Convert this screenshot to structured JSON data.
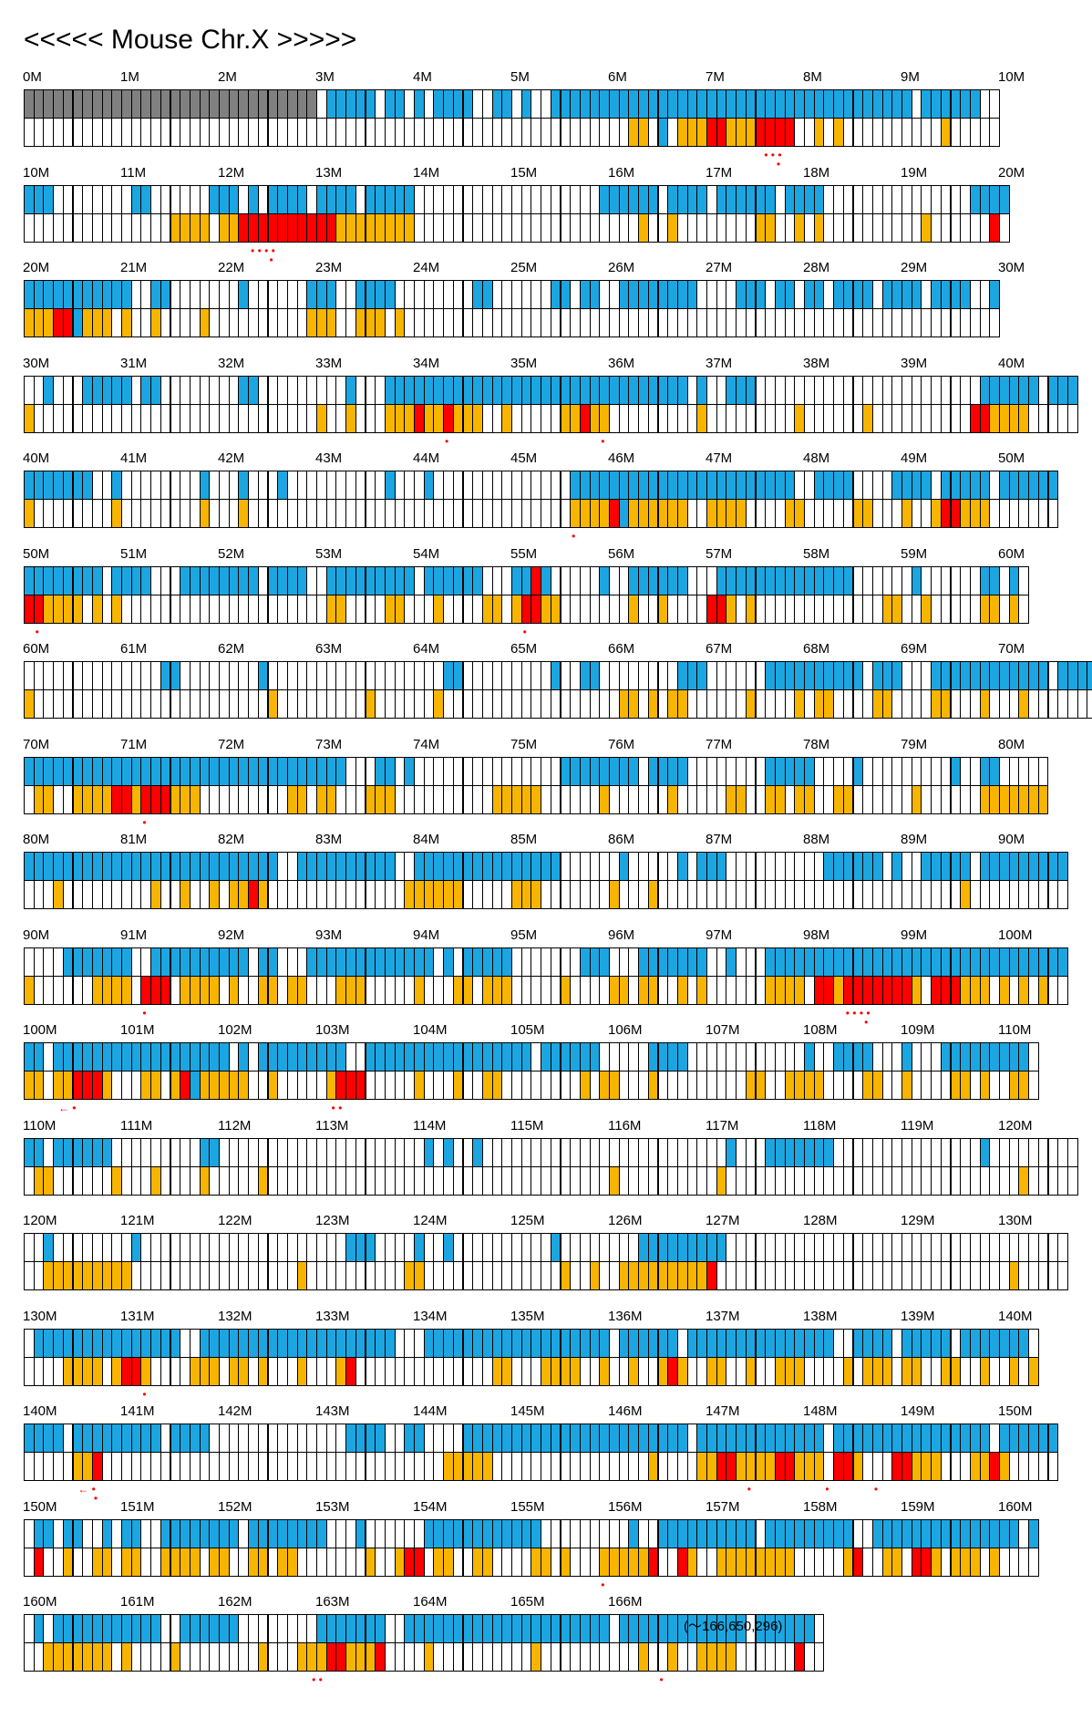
{
  "title": "<<<<< Mouse Chr.X >>>>>",
  "end_note": "(〜166,650,296)",
  "legend_colors": {
    "gray": "#808080",
    "blue": "#1ba6e1",
    "orange": "#f7b500",
    "red": "#ff0000",
    "marker": "#ff0000"
  },
  "bins_per_megabase": 10,
  "rows": [
    {
      "start_label": "0M",
      "tick_labels": [
        "0M",
        "1M",
        "2M",
        "3M",
        "4M",
        "5M",
        "6M",
        "7M",
        "8M",
        "9M",
        "10M"
      ],
      "top": "GGGGGGGGGGGGGGGGGGGGGGGGGGGGGG.BBBBB.BB.B.BBBB..BB.B..BBBBBBBBBBBBBBBBBBBBBBBBBBBBBBBBBBBBB.BBBBBB.",
      "bottom": "..............................................................OO.B.OOORROOORRRR..O.O..........O..",
      "markers": [
        {
          "bin": 77,
          "text": "• • •"
        },
        {
          "bin": 77,
          "text": "•",
          "level": 2
        }
      ]
    },
    {
      "start_label": "10M",
      "tick_labels": [
        "10M",
        "11M",
        "12M",
        "13M",
        "14M",
        "15M",
        "16M",
        "17M",
        "18M",
        "19M",
        "20M"
      ],
      "top": "BBB........BB......BBB.B.BBBB.BBBB.BBBBB...................BBBBBB.BBBB.BBBBBB.BBBB...............BBBB",
      "bottom": "...............OOOO.OORRRRRRRRRROOOOOOOO.......................O..O........OO..O.O..........O......R",
      "markers": [
        {
          "bin": 25,
          "text": "• • • •"
        },
        {
          "bin": 25,
          "text": "•",
          "level": 2
        }
      ]
    },
    {
      "start_label": "20M",
      "tick_labels": [
        "20M",
        "21M",
        "22M",
        "23M",
        "24M",
        "25M",
        "26M",
        "27M",
        "28M",
        "29M",
        "30M"
      ],
      "top": "BBBBBBBBBBB..BB.......B......BBB..BBBB........BB......BB.BB..BBBBBBBB....BBB.BB.BB.BBBB.BBBB.BBBB..B",
      "bottom": "OOORRBOOO.O..O....O..........OOO..OOO.O..........................................................",
      "markers": []
    },
    {
      "start_label": "30M",
      "tick_labels": [
        "30M",
        "31M",
        "32M",
        "33M",
        "34M",
        "35M",
        "36M",
        "37M",
        "38M",
        "39M",
        "40M"
      ],
      "top": "..B...BBBBB.BB........BB.........B...BBBBBBBBBBBBBBBBBBBBBBBBBBBBBBB.B..BBB.......................BBBBBB.BBB",
      "bottom": "O.............................O..O...OOOROOROOO..O.....OOROO.........O.........O......O..........RROOOO",
      "markers": [
        {
          "bin": 43,
          "text": "•"
        },
        {
          "bin": 59,
          "text": "•"
        }
      ]
    },
    {
      "start_label": "40M",
      "tick_labels": [
        "40M",
        "41M",
        "42M",
        "43M",
        "44M",
        "45M",
        "46M",
        "47M",
        "48M",
        "49M",
        "50M"
      ],
      "top": "BBBBBBB..B........B...B...B..........B...B..............BBBBBBBBBBBBBBBBBBBBBBB..BBBB....BBBB.BBBBB.BBBBBB",
      "bottom": "O........O........O...O.................................OOOORBOOOOOO..OOOO....OO.....OO...O..ORROOO",
      "markers": [
        {
          "bin": 56,
          "text": "•"
        }
      ]
    },
    {
      "start_label": "50M",
      "tick_labels": [
        "50M",
        "51M",
        "52M",
        "53M",
        "54M",
        "55M",
        "56M",
        "57M",
        "58M",
        "59M",
        "60M"
      ],
      "top": "BBBBBBBB.BBBB...BBBBBBBB.BBBB..BBBBBBBBB.BBBBBB...BBRB.....B..BBBBBB...BBBBBBBBBBBBBB......B......BB.B.",
      "bottom": "RROOOO.O.O.....................OO....OO...O....OO.ORROO.......O..O....RRO.O.............OO..O.....OO.O.",
      "markers": [
        {
          "bin": 1,
          "text": "•"
        },
        {
          "bin": 51,
          "text": "•"
        }
      ]
    },
    {
      "start_label": "60M",
      "tick_labels": [
        "60M",
        "61M",
        "62M",
        "63M",
        "64M",
        "65M",
        "66M",
        "67M",
        "68M",
        "69M",
        "70M"
      ],
      "top": "..............BB........B..................BB.........B..BB........BBB......BBBBBBBBBB.BBB...BBBBBBBBBBBB.BBBBBB",
      "bottom": "O........................O.........O......O..................OO.O.OO......O....O.OO....OO....OO...O...O.......",
      "markers": []
    },
    {
      "start_label": "70M",
      "tick_labels": [
        "70M",
        "71M",
        "72M",
        "73M",
        "74M",
        "75M",
        "76M",
        "77M",
        "78M",
        "79M",
        "80M"
      ],
      "top": "BBBBBBBBBBBBBBBBBBBBBBBBBBBBBBBBB...BB.B...............BBBBBBBB.BBBB........BBBBB....B.........B..BB...",
      "bottom": ".OO..OOOORRORRROOO.........OO.OO...OOO..........OOOOO......O......O.....OO..OO.OO..OO......O......OOOOOOO",
      "markers": [
        {
          "bin": 12,
          "text": "•"
        }
      ]
    },
    {
      "start_label": "80M",
      "tick_labels": [
        "80M",
        "81M",
        "82M",
        "83M",
        "84M",
        "85M",
        "86M",
        "87M",
        "88M",
        "89M",
        "90M"
      ],
      "top": "BBBBBBBBBBBBBBBBBBBBBBBBBB..BBBBBBBBBB..BBBBBBBBBBBBBBB......B.....B.BBB..........BBBBBB.B..BBBBB.BBBBBBBBB",
      "bottom": "...O.........O..O..O.OORO..............OOOOOO.....OOO.......O...O...............................O.........",
      "markers": []
    },
    {
      "start_label": "90M",
      "tick_labels": [
        "90M",
        "91M",
        "92M",
        "93M",
        "94M",
        "95M",
        "96M",
        "97M",
        "98M",
        "99M",
        "100M"
      ],
      "top": "....BBBBBBB..BBBBBBBBBB.BB...BBBBBBBBBBBBB.B.BBBBB.......BBB...BBBBBBB..B...BBBBBBBBBBBBBBBBBBBBBBBBBBBBBBB",
      "bottom": "O......OOOO.RRR.OOOO.O..OO.OO...OOO.....O...OO.OOO.....O....OO.OO..O.O......OOOO.RRORRRRRRRO.RRROOO.O.O.O",
      "markers": [
        {
          "bin": 12,
          "text": "•"
        },
        {
          "bin": 86,
          "text": "• • • •"
        },
        {
          "bin": 86,
          "text": "•",
          "level": 2
        }
      ]
    },
    {
      "start_label": "100M",
      "tick_labels": [
        "100M",
        "101M",
        "102M",
        "103M",
        "104M",
        "105M",
        "106M",
        "107M",
        "108M",
        "109M",
        "110M"
      ],
      "top": "BB.BBBBBBBBBBBBBBBBBB.B.BBBBBBBBB..BBBBBBBBBBBBBBBBB.BBBBBB.....BBBB............B..BBBB...B...BBBBBBBBB",
      "bottom": "OO.OORRRO...OO.ORBOOOOO..O.....ORRR.....O...O..OO........O.OO...O.........OO..OOOO....OO..O....OO.O..OO.",
      "markers": [
        {
          "bin": 4,
          "text": "← •"
        },
        {
          "bin": 32,
          "text": "• •"
        }
      ]
    },
    {
      "start_label": "110M",
      "tick_labels": [
        "110M",
        "111M",
        "112M",
        "113M",
        "114M",
        "115M",
        "116M",
        "117M",
        "118M",
        "119M",
        "120M"
      ],
      "top": "BB.BBBBBB.........BB.....................B.B..B.........................B...BBBBBBB...............B....",
      "bottom": ".OO......O...O....O.....O...................................O..........O..............................O.....",
      "markers": []
    },
    {
      "start_label": "120M",
      "tick_labels": [
        "120M",
        "121M",
        "122M",
        "123M",
        "124M",
        "125M",
        "126M",
        "127M",
        "128M",
        "129M",
        "130M"
      ],
      "top": "..B........B.....................BBB....B..B..........B........BBBBBBBBB...................................",
      "bottom": "..OOOOOOOOO.................O..........OO..............O..O..OOOOOOOOOR..............................O.",
      "markers": []
    },
    {
      "start_label": "130M",
      "tick_labels": [
        "130M",
        "131M",
        "132M",
        "133M",
        "134M",
        "135M",
        "136M",
        "137M",
        "138M",
        "139M",
        "140M"
      ],
      "top": ".BBBBBBBBBBBBBBB..BBBBBBBBBBBBBBBBBBBB...BBBBBBBBBBBBBBBBBBB.BBBBBB.BBBBBBBBBBBBBBB..BBBB.BBBBB.BBBBBBB",
      "bottom": "....OOOO.ORRO....OOO.OO.O...O...OR..............OO...OOOO..O..O..ORO..OO..O..OOO....O.OOO.OO..OO..O..O.O",
      "markers": [
        {
          "bin": 12,
          "text": "•"
        }
      ]
    },
    {
      "start_label": "140M",
      "tick_labels": [
        "140M",
        "141M",
        "142M",
        "143M",
        "144M",
        "145M",
        "146M",
        "147M",
        "148M",
        "149M",
        "150M"
      ],
      "top": "BBBB.BBBBBBBBB.BBBB..............BBBB..BB....BBBBBBBBBBBBBBBBBBBBBBB.BBBBBBBBBBBBB.BBBBBBBBBBBBBBBB.BBBBBB",
      "bottom": ".....OOR...................................OOOOO................O....OORROOOORROOO.RRO...RROOO...OORO.",
      "markers": [
        {
          "bin": 6,
          "text": "← •"
        },
        {
          "bin": 7,
          "text": "•",
          "level": 2
        },
        {
          "bin": 74,
          "text": "•"
        },
        {
          "bin": 82,
          "text": "•"
        },
        {
          "bin": 87,
          "text": "•"
        }
      ]
    },
    {
      "start_label": "150M",
      "tick_labels": [
        "150M",
        "151M",
        "152M",
        "153M",
        "154M",
        "155M",
        "156M",
        "157M",
        "158M",
        "159M",
        "160M"
      ],
      "top": ".BB.BB..B.BB..BBBBBBBB.BBBBBBBB...B......BBBBBBBBBBBB.........B..BBBBBBBBBB.BBBBBBBBB..BBBBBBBBBBBBBBB.B",
      "bottom": ".R..O..OO.OO..OOOO.OO..OO.OO.......O..ORR.OO..OO....OO.O...OOOOOR..RO..OOOOOOOO.....OR..OO.RRO.OOO.O",
      "markers": [
        {
          "bin": 59,
          "text": "•"
        }
      ]
    },
    {
      "start_label": "160M",
      "tick_labels": [
        "160M",
        "161M",
        "162M",
        "163M",
        "164M",
        "165M",
        "166M"
      ],
      "top": ".B.BBBBBBBBBBB..BBBBBB........BBBBBBB..BBBBBBBBBBBBBBBBBBBBB.BBBBBBBBBBBBB.BBBBBB",
      "bottom": "..OOOOOOO.O....O........O...OOORROOOR....O..........O..........O..O..OOOO......R..",
      "markers": [
        {
          "bin": 30,
          "text": "• •"
        },
        {
          "bin": 65,
          "text": "•"
        }
      ]
    }
  ]
}
